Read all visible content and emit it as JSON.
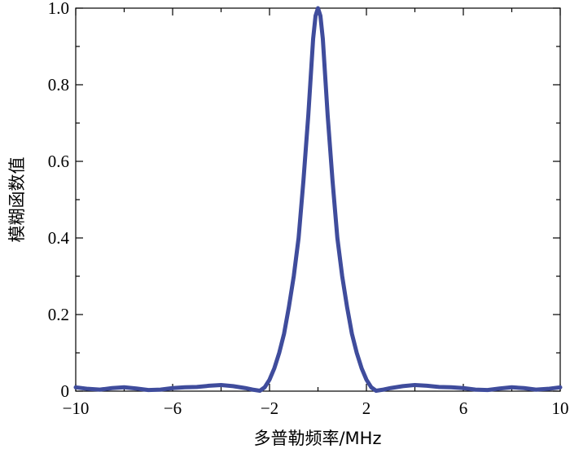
{
  "chart_data": {
    "type": "line",
    "title": "",
    "xlabel": "多普勒频率/MHz",
    "ylabel": "模糊函数值",
    "xlim": [
      -10,
      10
    ],
    "ylim": [
      0,
      1.0
    ],
    "grid": false,
    "legend": "none",
    "x_ticks": [
      -10,
      -6,
      -2,
      2,
      6,
      10
    ],
    "x_tick_labels": [
      "−10",
      "−6",
      "−2",
      "2",
      "6",
      "10"
    ],
    "y_ticks": [
      0,
      0.2,
      0.4,
      0.6,
      0.8,
      1.0
    ],
    "y_tick_labels": [
      "0",
      "0.2",
      "0.4",
      "0.6",
      "0.8",
      "1.0"
    ],
    "series": [
      {
        "color": "#3f4c9c",
        "x": [
          -10,
          -9.5,
          -9,
          -8.5,
          -8,
          -7.5,
          -7,
          -6.5,
          -6,
          -5.5,
          -5,
          -4.5,
          -4,
          -3.5,
          -3,
          -2.7,
          -2.4,
          -2.2,
          -2,
          -1.8,
          -1.6,
          -1.4,
          -1.2,
          -1,
          -0.8,
          -0.6,
          -0.4,
          -0.3,
          -0.2,
          -0.1,
          0,
          0.1,
          0.2,
          0.3,
          0.4,
          0.6,
          0.8,
          1,
          1.2,
          1.4,
          1.6,
          1.8,
          2,
          2.2,
          2.4,
          2.7,
          3,
          3.5,
          4,
          4.5,
          5,
          5.5,
          6,
          6.5,
          7,
          7.5,
          8,
          8.5,
          9,
          9.5,
          10
        ],
        "y": [
          0.01,
          0.006,
          0.004,
          0.008,
          0.01,
          0.007,
          0.003,
          0.004,
          0.008,
          0.01,
          0.011,
          0.014,
          0.016,
          0.013,
          0.008,
          0.004,
          0.001,
          0.01,
          0.03,
          0.06,
          0.1,
          0.15,
          0.22,
          0.3,
          0.4,
          0.55,
          0.72,
          0.82,
          0.92,
          0.98,
          1.0,
          0.98,
          0.92,
          0.82,
          0.72,
          0.55,
          0.4,
          0.3,
          0.22,
          0.15,
          0.1,
          0.06,
          0.03,
          0.01,
          0.001,
          0.004,
          0.008,
          0.013,
          0.016,
          0.014,
          0.011,
          0.01,
          0.008,
          0.004,
          0.003,
          0.007,
          0.01,
          0.008,
          0.004,
          0.006,
          0.01
        ]
      }
    ]
  }
}
